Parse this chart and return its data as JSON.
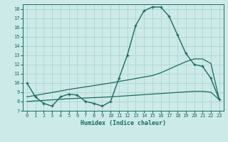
{
  "title": "",
  "xlabel": "Humidex (Indice chaleur)",
  "ylabel": "",
  "bg_color": "#cceae8",
  "grid_color": "#b0d8d4",
  "line_color": "#1a6b60",
  "xlim": [
    -0.5,
    23.5
  ],
  "ylim": [
    7,
    18.5
  ],
  "xticks": [
    0,
    1,
    2,
    3,
    4,
    5,
    6,
    7,
    8,
    9,
    10,
    11,
    12,
    13,
    14,
    15,
    16,
    17,
    18,
    19,
    20,
    21,
    22,
    23
  ],
  "yticks": [
    7,
    8,
    9,
    10,
    11,
    12,
    13,
    14,
    15,
    16,
    17,
    18
  ],
  "line1_x": [
    0,
    1,
    2,
    3,
    4,
    5,
    6,
    7,
    8,
    9,
    10,
    11,
    12,
    13,
    14,
    15,
    16,
    17,
    18,
    19,
    20,
    21,
    22,
    23
  ],
  "line1_y": [
    10.0,
    8.5,
    7.8,
    7.5,
    8.5,
    8.8,
    8.7,
    8.0,
    7.8,
    7.5,
    8.0,
    10.5,
    13.0,
    16.2,
    17.8,
    18.2,
    18.2,
    17.2,
    15.2,
    13.2,
    12.0,
    11.8,
    10.5,
    8.2
  ],
  "line2_x": [
    0,
    5,
    10,
    15,
    16,
    17,
    18,
    19,
    20,
    21,
    22,
    23
  ],
  "line2_y": [
    8.5,
    9.3,
    10.0,
    10.8,
    11.1,
    11.5,
    11.9,
    12.3,
    12.6,
    12.6,
    12.1,
    8.2
  ],
  "line3_x": [
    0,
    5,
    10,
    15,
    20,
    21,
    22,
    23
  ],
  "line3_y": [
    8.0,
    8.3,
    8.5,
    8.8,
    9.1,
    9.1,
    9.0,
    8.2
  ]
}
